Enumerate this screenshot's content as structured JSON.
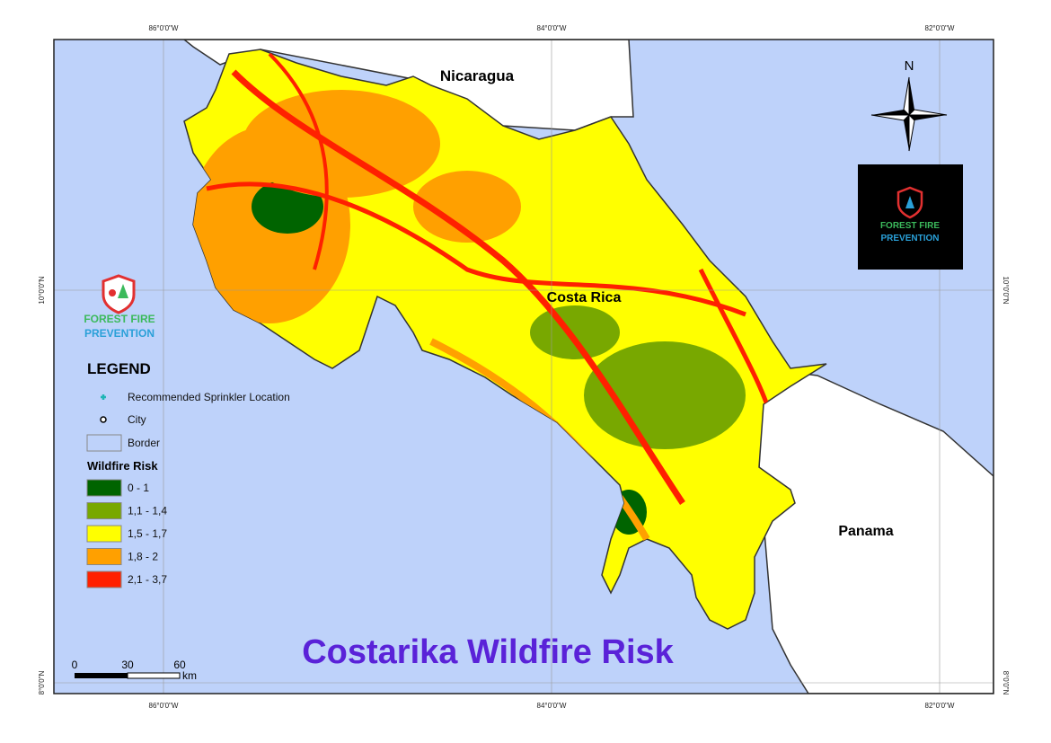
{
  "title": "Costarika  Wildfire Risk",
  "graticule": {
    "top": [
      "86°0'0\"W",
      "84°0'0\"W",
      "82°0'0\"W"
    ],
    "bottom": [
      "86°0'0\"W",
      "84°0'0\"W",
      "82°0'0\"W"
    ],
    "left": [
      "10°0'0\"N",
      "8°0'0\"N"
    ],
    "right": [
      "10°0'0\"N",
      "8°0'0\"N"
    ]
  },
  "countries": [
    "Nicaragua",
    "Costa Rica",
    "Panama"
  ],
  "north": "N",
  "logo": {
    "line1": "FOREST FIRE",
    "line2": "PREVENTION"
  },
  "legend": {
    "title": "LEGEND",
    "items": [
      "Recommended Sprinkler Location",
      "City",
      "Border"
    ],
    "risk_title": "Wildfire Risk",
    "classes": [
      {
        "label": "0 - 1",
        "color": "#006400"
      },
      {
        "label": "1,1 - 1,4",
        "color": "#78a800"
      },
      {
        "label": "1,5 - 1,7",
        "color": "#ffff00"
      },
      {
        "label": "1,8 - 2",
        "color": "#ffa000"
      },
      {
        "label": "2,1 - 3,7",
        "color": "#ff2000"
      }
    ]
  },
  "scale": {
    "ticks": [
      "0",
      "30",
      "60"
    ],
    "unit": "km"
  }
}
